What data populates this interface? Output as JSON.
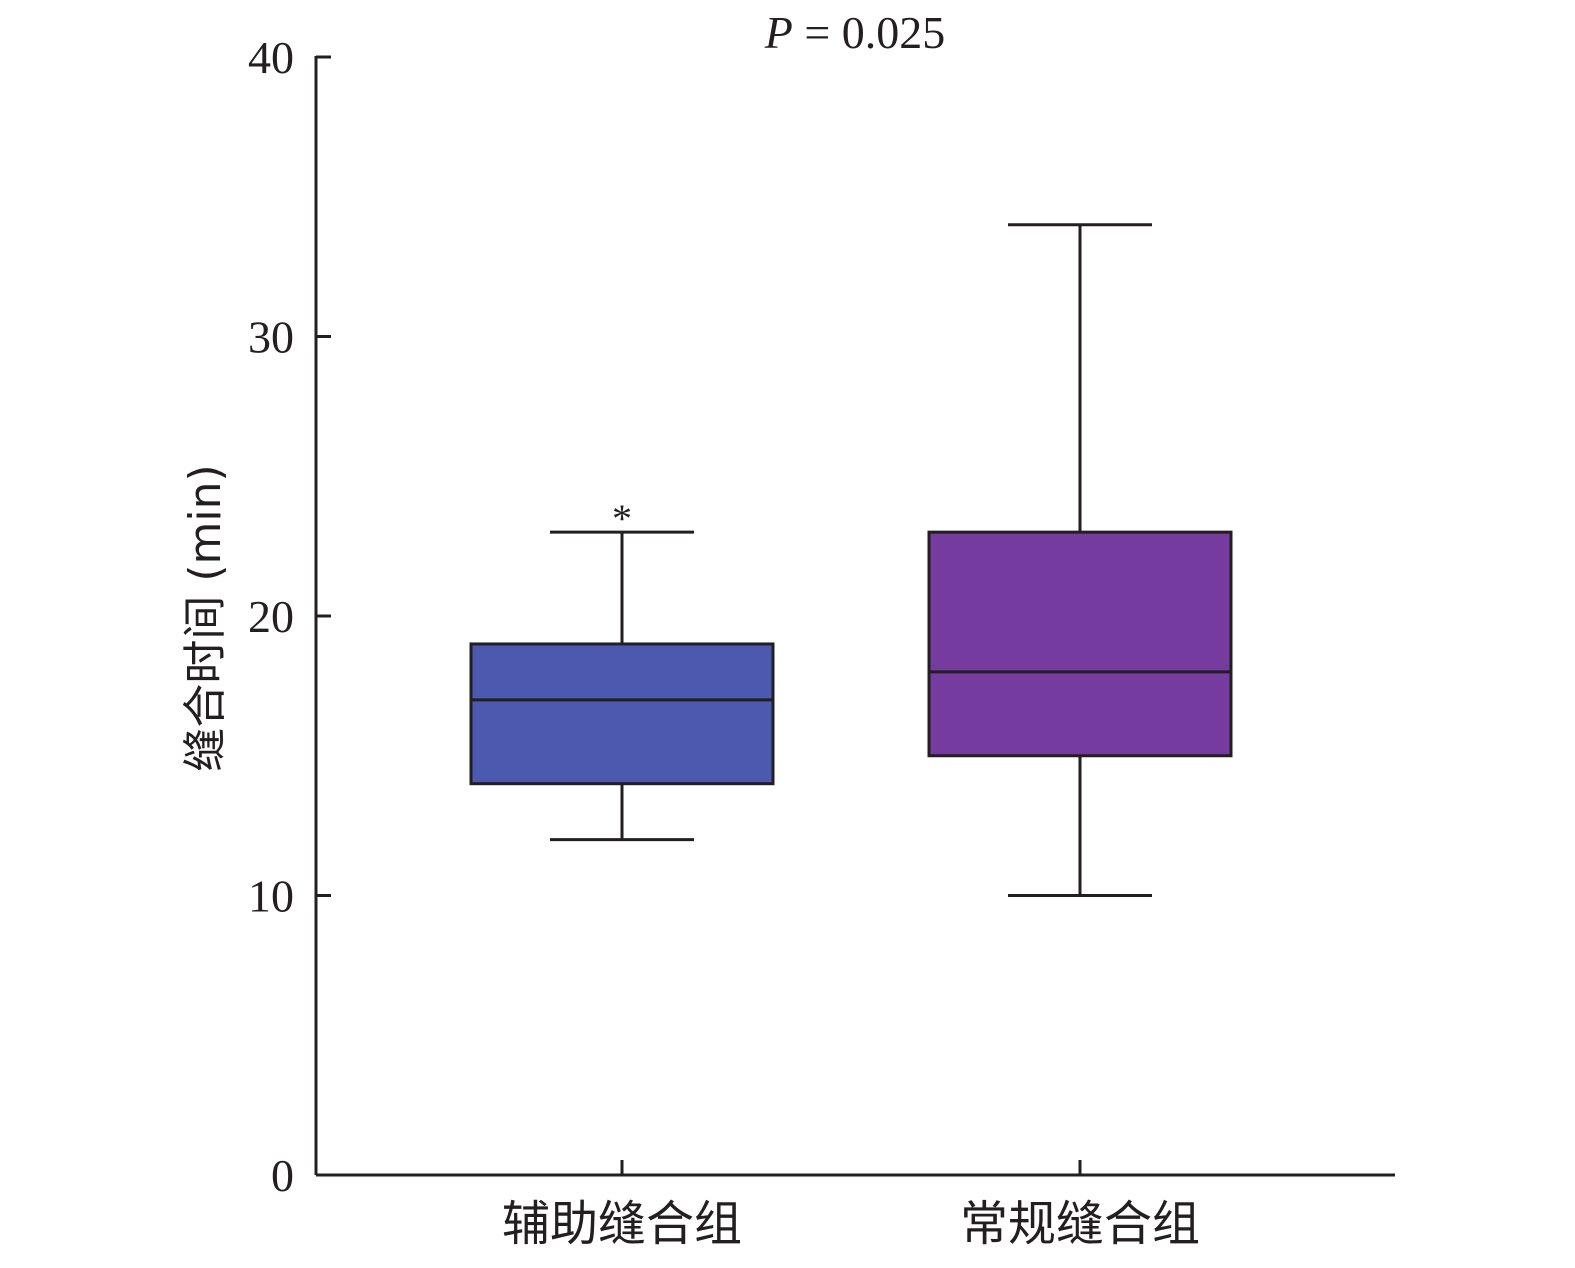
{
  "chart_data": {
    "type": "box",
    "title": "",
    "annotation": {
      "p_italic": "P",
      "p_rest": " = 0.025"
    },
    "ylabel": "缝合时间 (min)",
    "xlabel": "",
    "ylim": [
      0,
      40
    ],
    "yticks": [
      0,
      10,
      20,
      30,
      40
    ],
    "categories": [
      "辅助缝合组",
      "常规缝合组"
    ],
    "boxes": [
      {
        "category": "辅助缝合组",
        "min": 12,
        "q1": 14,
        "median": 17,
        "q3": 19,
        "max": 23,
        "outliers": [
          24
        ],
        "outlier_marker": "*",
        "color": "#4b5aaf"
      },
      {
        "category": "常规缝合组",
        "min": 10,
        "q1": 15,
        "median": 18,
        "q3": 23,
        "max": 34,
        "outliers": [],
        "color": "#763b9e"
      }
    ]
  }
}
